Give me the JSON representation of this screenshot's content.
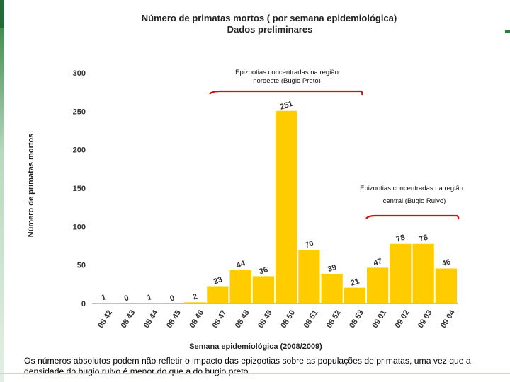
{
  "chart_data": {
    "type": "bar",
    "title": "Número de primatas mortos ( por semana epidemiológica)",
    "subtitle": "Dados preliminares",
    "xlabel": "Semana epidemiológica (2008/2009)",
    "ylabel": "Número de primatas mortos",
    "ylim": [
      0,
      300
    ],
    "yticks": [
      "0",
      "50",
      "100",
      "150",
      "200",
      "250",
      "300"
    ],
    "categories": [
      "08 42",
      "08 43",
      "08 44",
      "08 45",
      "08 46",
      "08 47",
      "08 48",
      "08 49",
      "08 50",
      "08 51",
      "08 52",
      "08 53",
      "09 01",
      "09 02",
      "09 03",
      "09 04"
    ],
    "values": [
      1,
      0,
      1,
      0,
      2,
      23,
      44,
      36,
      251,
      70,
      39,
      21,
      47,
      78,
      78,
      46
    ],
    "data_labels": [
      "1",
      "0",
      "1",
      "0",
      "2",
      "23",
      "44",
      "36",
      "251",
      "70",
      "39",
      "21",
      "47",
      "78",
      "78",
      "46"
    ],
    "bar_color": "#ffcc00",
    "grid": false,
    "annotations": [
      {
        "lines": [
          "Epizootias concentradas na região",
          "noroeste (Bugio Preto)"
        ],
        "bracket_color": "#cc1111"
      },
      {
        "lines": [
          "Epizootias concentradas na região",
          "central (Bugio Ruivo)"
        ],
        "bracket_color": "#cc1111"
      }
    ]
  },
  "footer": {
    "note": "Os números absolutos podem não refletir o impacto das epizootias sobre as populações de primatas, uma vez que a densidade do bugio ruivo é menor do que a do bugio preto."
  }
}
